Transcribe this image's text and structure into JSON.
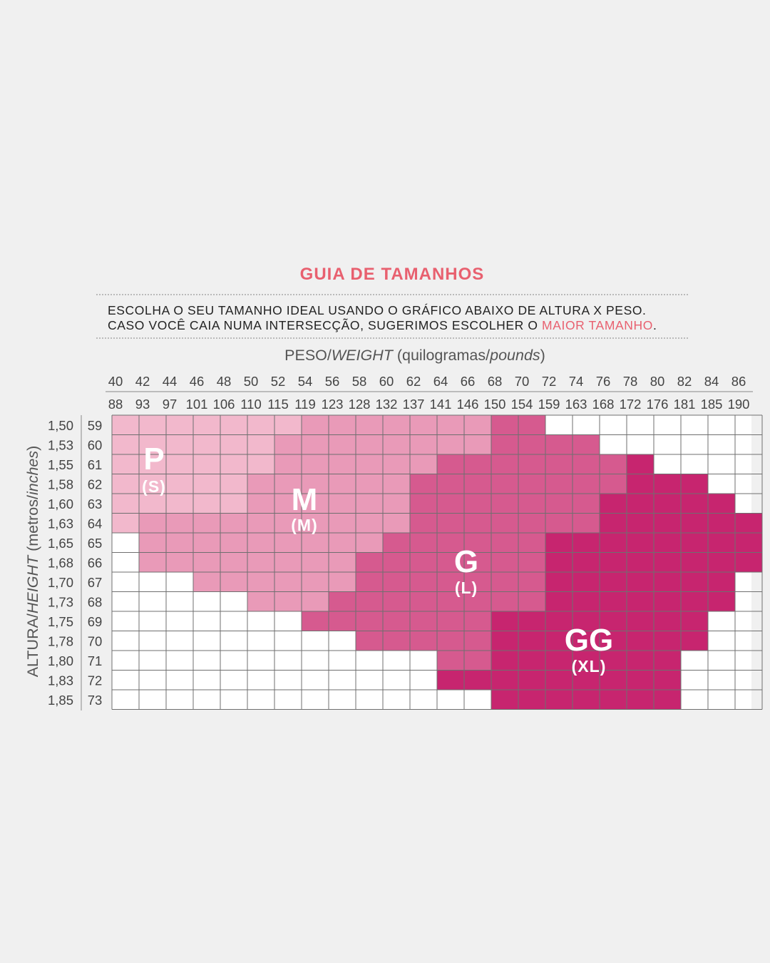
{
  "chart_data": {
    "type": "heatmap",
    "title": "GUIA DE TAMANHOS",
    "instructions": {
      "line1": "ESCOLHA O SEU TAMANHO IDEAL  USANDO O GRÁFICO ABAIXO DE ALTURA X PESO.",
      "line2_prefix": "CASO VOCÊ CAIA NUMA INTERSECÇÃO, SUGERIMOS ESCOLHER O ",
      "line2_highlight": "MAIOR TAMANHO",
      "line2_suffix": "."
    },
    "xlabel": {
      "part1": "PESO/",
      "part2_italic": "WEIGHT",
      "part3": " (quilogramas/",
      "part4_italic": "pounds",
      "part5": ")"
    },
    "ylabel": {
      "part1": "ALTURA/",
      "part2_italic": "HEIGHT",
      "part3": " (metros/",
      "part4_italic": "inches",
      "part5": ")"
    },
    "x_kg": [
      "40",
      "42",
      "44",
      "46",
      "48",
      "50",
      "52",
      "54",
      "56",
      "58",
      "60",
      "62",
      "64",
      "66",
      "68",
      "70",
      "72",
      "74",
      "76",
      "78",
      "80",
      "82",
      "84",
      "86"
    ],
    "x_lb": [
      "88",
      "93",
      "97",
      "101",
      "106",
      "110",
      "115",
      "119",
      "123",
      "128",
      "132",
      "137",
      "141",
      "146",
      "150",
      "154",
      "159",
      "163",
      "168",
      "172",
      "176",
      "181",
      "185",
      "190"
    ],
    "y_m": [
      "1,50",
      "1,53",
      "1,55",
      "1,58",
      "1,60",
      "1,63",
      "1,65",
      "1,68",
      "1,70",
      "1,73",
      "1,75",
      "1,78",
      "1,80",
      "1,83",
      "1,85"
    ],
    "y_in": [
      "59",
      "60",
      "61",
      "62",
      "63",
      "64",
      "65",
      "66",
      "67",
      "68",
      "69",
      "70",
      "71",
      "72",
      "73"
    ],
    "sizes": [
      {
        "name": "P",
        "sub": "(S)",
        "color": "#f2b8cc"
      },
      {
        "name": "M",
        "sub": "(M)",
        "color": "#e99ab8"
      },
      {
        "name": "G",
        "sub": "(L)",
        "color": "#d65a8f"
      },
      {
        "name": "GG",
        "sub": "(XL)",
        "color": "#c7256f"
      }
    ],
    "grid_rows": [
      "PPPPPPPMMMMMMMGG........",
      "PPPPPPMMMMMMMMGGGG......",
      "PPPPPPMMMMMMGGGGGGGX....",
      "PPPPPMMMMMMGGGGGGGGXXX..",
      "PPPPPMMMMMMGGGGGGGXXXXX.",
      "PMMMMMMMMMMGGGGGGGXXXXXX",
      ".MMMMMMMMMGGGGGGXXXXXXXX",
      ".MMMMMMMMGGGGGGGXXXXXXXX",
      "...MMMMMMGGGGGGGXXXXXXX.",
      ".....MMMGGGGGGGGXXXXXXX.",
      ".......GGGGGGGXXXXXXXX..",
      ".........GGGGGXXXXXXXX..",
      "............GGXXXXXXX...",
      "............XXXXXXXXX...",
      "..............XXXXXXX..."
    ],
    "legend": "inline labels inside regions",
    "colors": {
      "title": "#e8606f",
      "highlight": "#e8606f",
      "text": "#404040",
      "grid": "#6f6f6f",
      "background": "#f0f0f0"
    }
  }
}
